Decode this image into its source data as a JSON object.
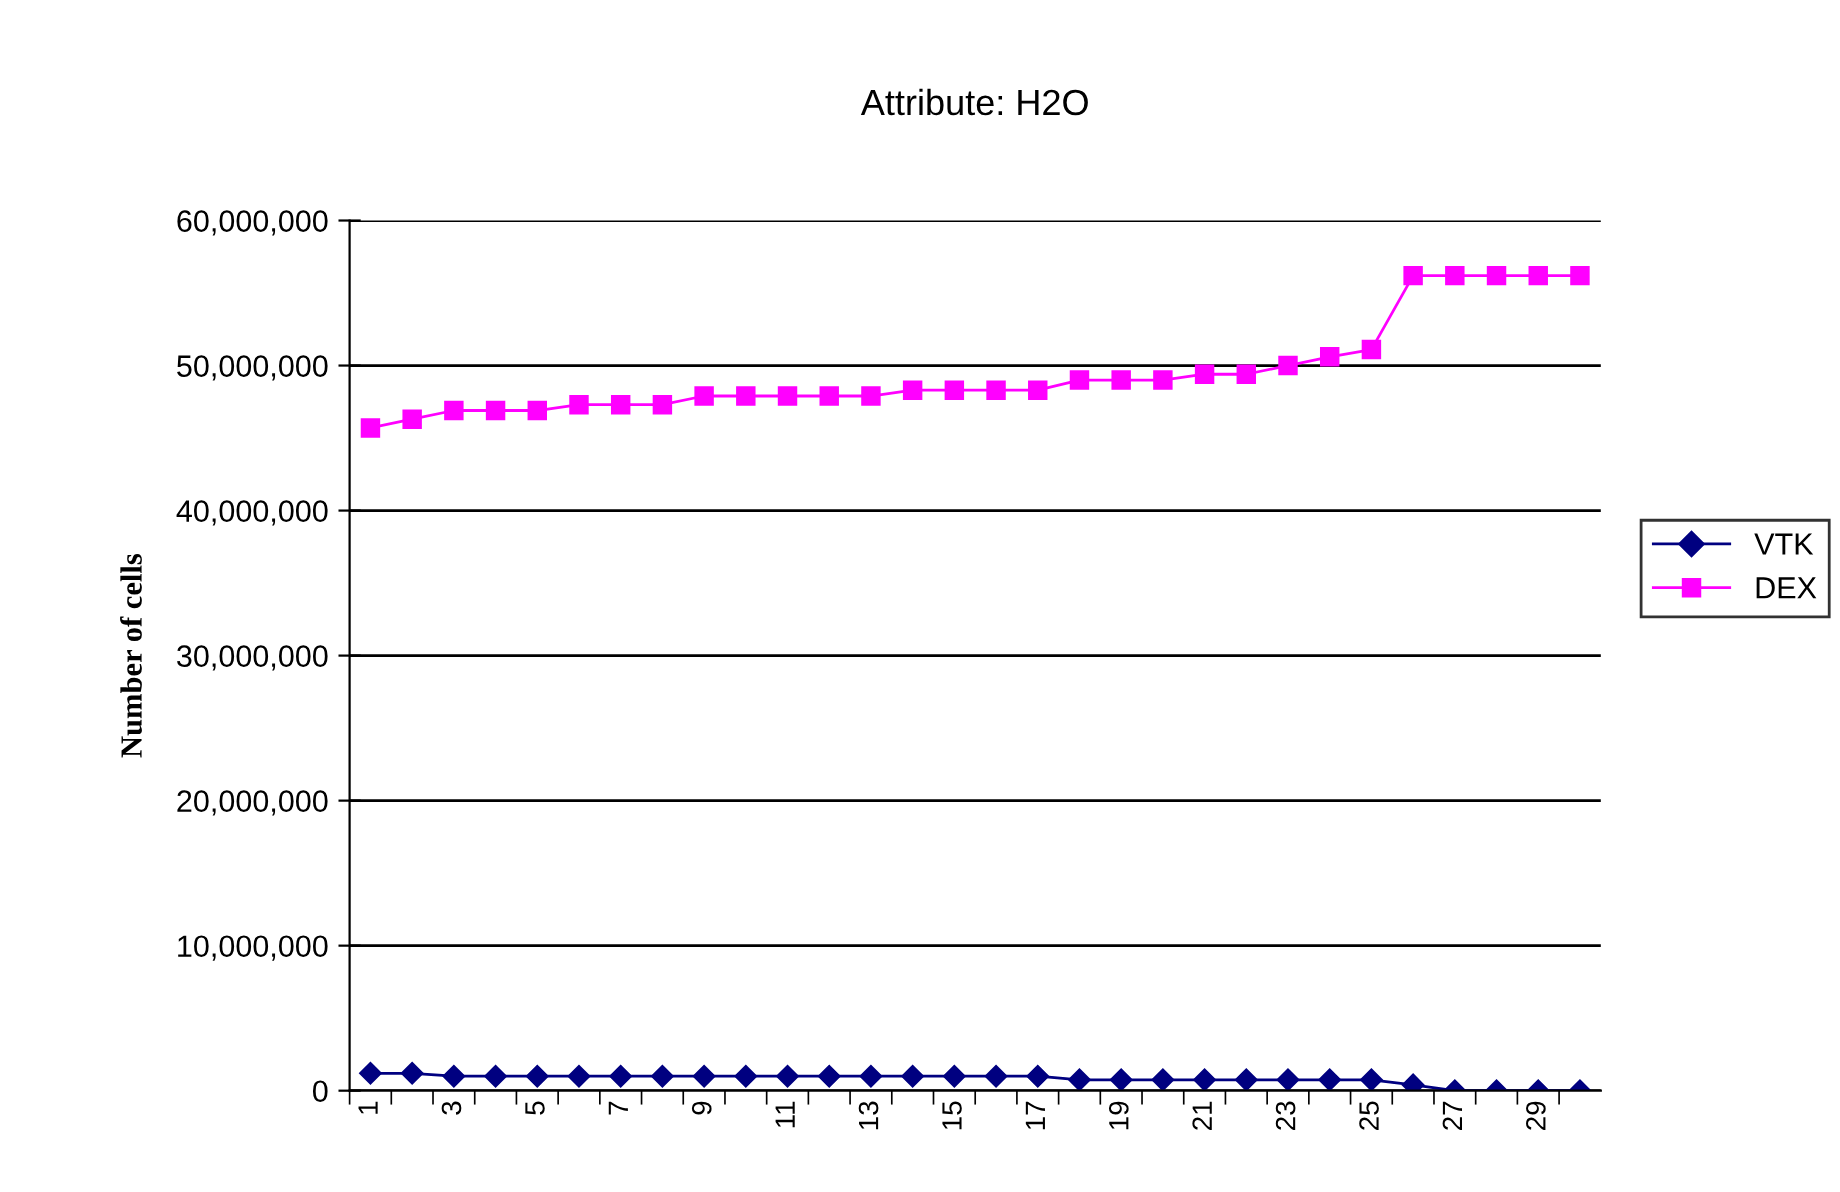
{
  "chart_data": {
    "type": "line",
    "title": "Attribute: H2O",
    "ylabel": "Number of cells",
    "categories": [
      "1",
      null,
      "3",
      null,
      "5",
      null,
      "7",
      null,
      "9",
      null,
      "11",
      null,
      "13",
      null,
      "15",
      null,
      "17",
      null,
      "19",
      null,
      "21",
      null,
      "23",
      null,
      "25",
      null,
      "27",
      null,
      "29",
      null
    ],
    "series": [
      {
        "name": "VTK",
        "color": "#000080",
        "marker": "diamond",
        "values": [
          1200000,
          1200000,
          1000000,
          1000000,
          1000000,
          1000000,
          1000000,
          1000000,
          1000000,
          1000000,
          1000000,
          1000000,
          1000000,
          1000000,
          1000000,
          1000000,
          1000000,
          750000,
          750000,
          750000,
          750000,
          750000,
          750000,
          750000,
          750000,
          400000,
          0,
          0,
          0,
          0
        ]
      },
      {
        "name": "DEX",
        "color": "#ff00ff",
        "marker": "square",
        "values": [
          45700000,
          46300000,
          46900000,
          46900000,
          46900000,
          47300000,
          47300000,
          47300000,
          47900000,
          47900000,
          47900000,
          47900000,
          47900000,
          48300000,
          48300000,
          48300000,
          48300000,
          49000000,
          49000000,
          49000000,
          49400000,
          49400000,
          50000000,
          50600000,
          51100000,
          56200000,
          56200000,
          56200000,
          56200000,
          56200000
        ]
      }
    ],
    "ylim": [
      0,
      60000000
    ],
    "yticks": [
      {
        "value": 0,
        "label": "0"
      },
      {
        "value": 10000000,
        "label": "10,000,000"
      },
      {
        "value": 20000000,
        "label": "20,000,000"
      },
      {
        "value": 30000000,
        "label": "30,000,000"
      },
      {
        "value": 40000000,
        "label": "40,000,000"
      },
      {
        "value": 50000000,
        "label": "50,000,000"
      },
      {
        "value": 60000000,
        "label": "60,000,000"
      }
    ],
    "grid": "y",
    "legend": "right"
  }
}
